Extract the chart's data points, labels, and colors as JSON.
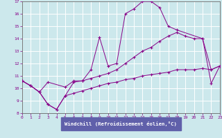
{
  "xlabel": "Windchill (Refroidissement éolien,°C)",
  "xlim": [
    0,
    23
  ],
  "ylim": [
    8,
    17
  ],
  "yticks": [
    8,
    9,
    10,
    11,
    12,
    13,
    14,
    15,
    16,
    17
  ],
  "xticks": [
    0,
    1,
    2,
    3,
    4,
    5,
    6,
    7,
    8,
    9,
    10,
    11,
    12,
    13,
    14,
    15,
    16,
    17,
    18,
    19,
    20,
    21,
    22,
    23
  ],
  "bg_color": "#cce8ec",
  "line_color": "#880088",
  "grid_color": "#b0d8dc",
  "spine_color": "#888888",
  "xlabel_bg": "#7070c0",
  "xlabel_fg": "#ffffff",
  "curve1_x": [
    0,
    1,
    2,
    3,
    4,
    5,
    6,
    7,
    8,
    9,
    10,
    11,
    12,
    13,
    14,
    15,
    16,
    17,
    18,
    21,
    22,
    23
  ],
  "curve1_y": [
    10.6,
    10.2,
    9.7,
    8.7,
    8.3,
    9.4,
    10.5,
    10.6,
    11.5,
    14.1,
    11.8,
    12.0,
    16.0,
    16.4,
    17.0,
    17.0,
    16.5,
    15.0,
    14.7,
    14.0,
    10.4,
    11.8
  ],
  "curve2_x": [
    0,
    1,
    2,
    3,
    5,
    6,
    7,
    8,
    9,
    10,
    11,
    12,
    13,
    14,
    15,
    16,
    17,
    18,
    19,
    20,
    21,
    22,
    23
  ],
  "curve2_y": [
    10.6,
    10.2,
    9.7,
    10.5,
    10.1,
    10.6,
    10.6,
    10.8,
    11.0,
    11.2,
    11.5,
    12.0,
    12.5,
    13.0,
    13.3,
    13.8,
    14.2,
    14.5,
    14.2,
    14.0,
    14.0,
    11.5,
    11.8
  ],
  "curve3_x": [
    0,
    1,
    2,
    3,
    4,
    5,
    6,
    7,
    8,
    9,
    10,
    11,
    12,
    13,
    14,
    15,
    16,
    17,
    18,
    19,
    20,
    21,
    22,
    23
  ],
  "curve3_y": [
    10.6,
    10.2,
    9.7,
    8.7,
    8.3,
    9.4,
    9.6,
    9.8,
    10.0,
    10.2,
    10.4,
    10.5,
    10.7,
    10.8,
    11.0,
    11.1,
    11.2,
    11.3,
    11.5,
    11.5,
    11.5,
    11.6,
    11.5,
    11.8
  ]
}
